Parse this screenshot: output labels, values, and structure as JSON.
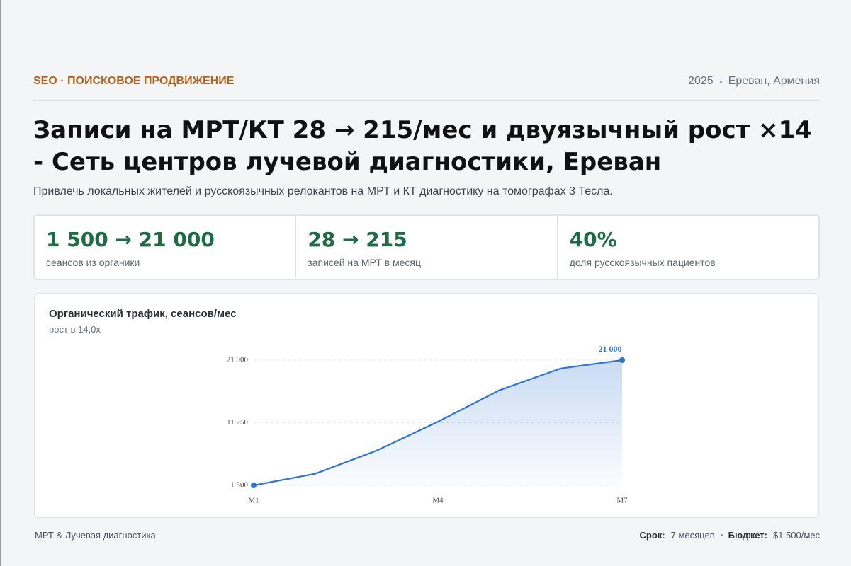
{
  "header": {
    "tag": "SEO · ПОИСКОВОЕ ПРОДВИЖЕНИЕ",
    "year": "2025",
    "location": "Ереван, Армения"
  },
  "title": "Записи на МРТ/КТ 28 → 215/мес и двуязычный рост ×14 - Сеть центров лучевой диагностики, Ереван",
  "description": "Привлечь локальных жителей и русскоязычных релокантов на МРТ и КТ диагностику на томографах 3 Тесла.",
  "stats": [
    {
      "value": "1 500 → 21 000",
      "label": "сеансов из органики"
    },
    {
      "value": "28 → 215",
      "label": "записей на МРТ в месяц"
    },
    {
      "value": "40%",
      "label": "доля русскоязычных пациентов"
    }
  ],
  "chart_data": {
    "type": "line",
    "title": "Органический трафик, сеансов/мес",
    "subtitle": "рост в 14,0x",
    "categories": [
      "M1",
      null,
      null,
      "M4",
      null,
      null,
      "M7"
    ],
    "values": [
      1500,
      3300,
      6900,
      11400,
      16300,
      19700,
      21000
    ],
    "value_labels": [
      null,
      null,
      null,
      null,
      null,
      null,
      "21 000"
    ],
    "color": "#2f74d0",
    "area": true,
    "ylim": [
      1500,
      21000
    ],
    "yticks": [
      {
        "value": 1500,
        "label": "1 500"
      },
      {
        "value": 11250,
        "label": "11 250"
      },
      {
        "value": 21000,
        "label": "21 000"
      }
    ],
    "grid": true
  },
  "footer": {
    "left": "МРТ & Лучевая диагностика",
    "term_label": "Срок:",
    "term": "7 месяцев",
    "budget_label": "Бюджет:",
    "budget": "$1 500/мес"
  }
}
